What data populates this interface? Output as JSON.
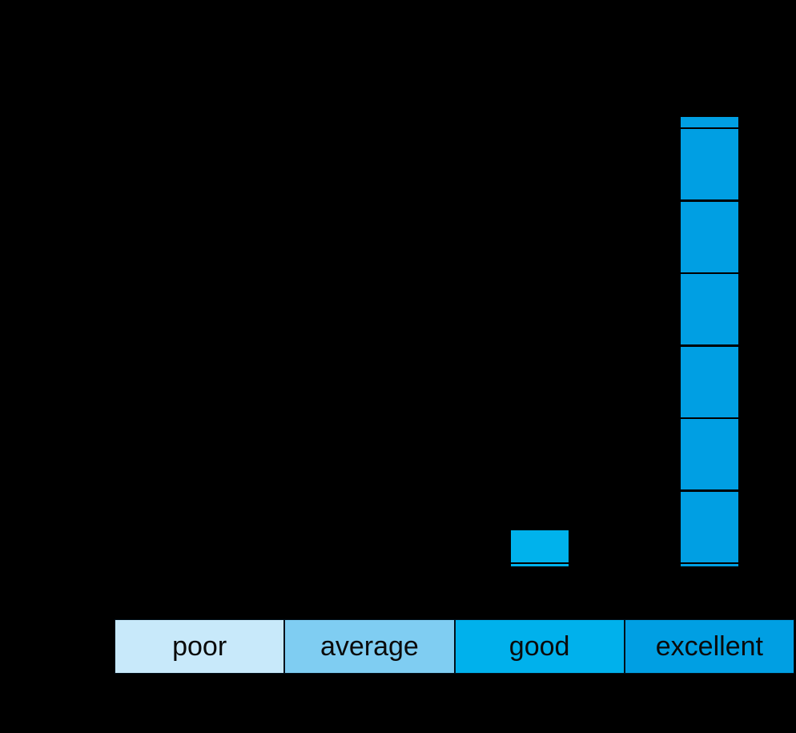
{
  "chart_data": {
    "type": "bar",
    "title": "",
    "xlabel": "",
    "ylabel": "",
    "categories": [
      "poor",
      "average",
      "good",
      "excellent"
    ],
    "values": [
      0,
      0,
      0.5,
      6.2
    ],
    "values_in_gridline_units": true,
    "ylim": [
      0,
      7
    ],
    "grid": true,
    "gridline_count": 8,
    "legend_position": "none",
    "axis_cells": [
      {
        "label": "poor",
        "color": "#c8e9fa"
      },
      {
        "label": "average",
        "color": "#7fcdf2"
      },
      {
        "label": "good",
        "color": "#00b1ec"
      },
      {
        "label": "excellent",
        "color": "#009fe3"
      }
    ],
    "bar_colors": [
      "#c8e9fa",
      "#7fcdf2",
      "#00b2ec",
      "#009fe3"
    ],
    "colors": {
      "background": "#000000",
      "gridline": "#000000",
      "axis_label_text": "#0a0a0a"
    }
  }
}
